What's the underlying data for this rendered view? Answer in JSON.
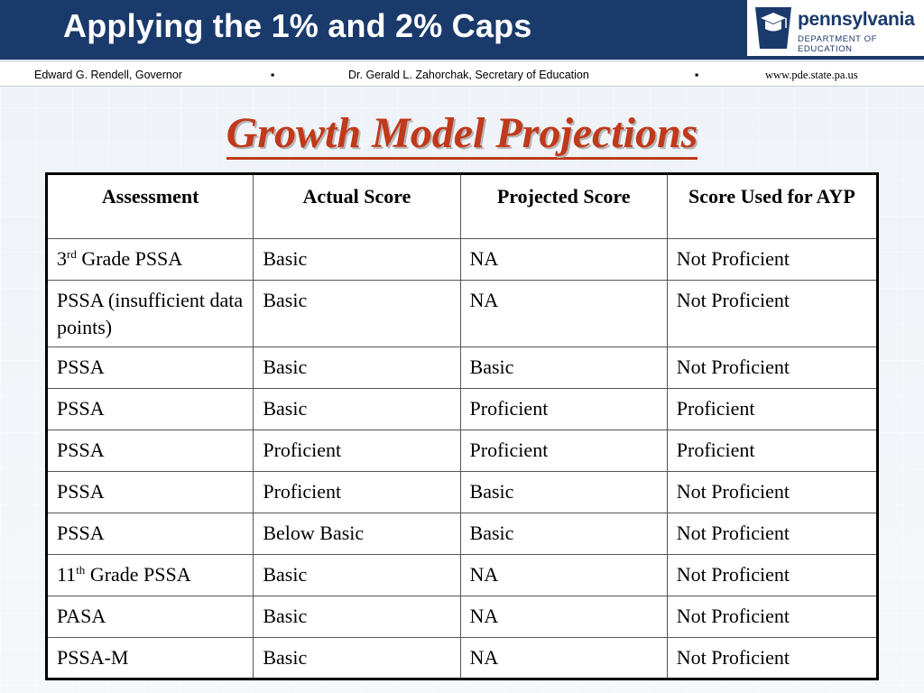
{
  "header": {
    "title": "Applying the 1% and 2% Caps",
    "logo_word": "pennsylvania",
    "logo_sub": "DEPARTMENT OF EDUCATION"
  },
  "subheader": {
    "governor": "Edward G. Rendell, Governor",
    "separator": "▪",
    "secretary": "Dr. Gerald L. Zahorchak, Secretary of Education",
    "website": "www.pde.state.pa.us"
  },
  "main": {
    "heading": "Growth Model Projections"
  },
  "table": {
    "headers": [
      "Assessment",
      "Actual Score",
      "Projected Score",
      "Score Used for AYP"
    ],
    "rows": [
      {
        "assessment_pre": "3",
        "assessment_sup": "rd",
        "assessment_post": " Grade PSSA",
        "actual": "Basic",
        "projected": "NA",
        "used": "Not Proficient"
      },
      {
        "assessment": "PSSA (insufficient data points)",
        "actual": "Basic",
        "projected": "NA",
        "used": "Not Proficient"
      },
      {
        "assessment": "PSSA",
        "actual": "Basic",
        "projected": "Basic",
        "used": "Not Proficient"
      },
      {
        "assessment": "PSSA",
        "actual": "Basic",
        "projected": "Proficient",
        "used": "Proficient"
      },
      {
        "assessment": "PSSA",
        "actual": "Proficient",
        "projected": "Proficient",
        "used": "Proficient"
      },
      {
        "assessment": "PSSA",
        "actual": "Proficient",
        "projected": "Basic",
        "used": "Not Proficient"
      },
      {
        "assessment": "PSSA",
        "actual": "Below Basic",
        "projected": "Basic",
        "used": "Not Proficient"
      },
      {
        "assessment_pre": "11",
        "assessment_sup": "th",
        "assessment_post": " Grade PSSA",
        "actual": "Basic",
        "projected": "NA",
        "used": "Not Proficient"
      },
      {
        "assessment": "PASA",
        "actual": "Basic",
        "projected": "NA",
        "used": "Not Proficient"
      },
      {
        "assessment": "PSSA-M",
        "actual": "Basic",
        "projected": "NA",
        "used": "Not Proficient"
      }
    ]
  },
  "colors": {
    "title_bar": "#1a3a6c",
    "heading": "#c0391b"
  }
}
